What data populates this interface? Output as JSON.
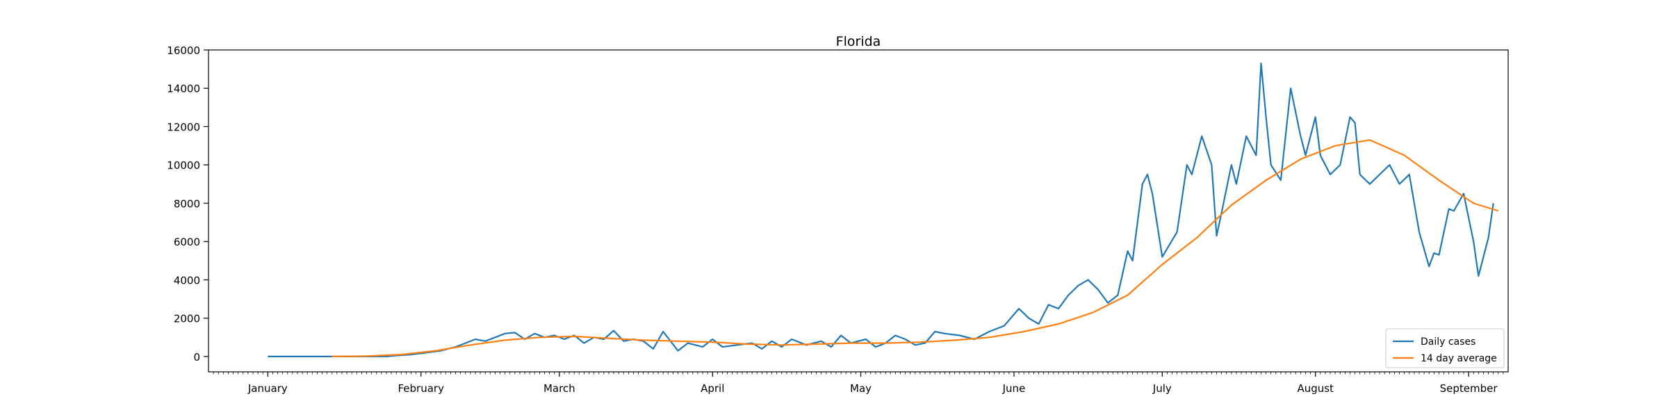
{
  "chart_data": {
    "type": "line",
    "title": "Florida",
    "xlabel": "",
    "ylabel": "",
    "x_axis": {
      "kind": "date",
      "range": [
        "2020-12-20",
        "2021-09-09"
      ],
      "tick_labels": [
        "January",
        "February",
        "March",
        "April",
        "May",
        "June",
        "July",
        "August",
        "September"
      ],
      "tick_dates": [
        "2021-01-01",
        "2021-02-01",
        "2021-03-01",
        "2021-04-01",
        "2021-05-01",
        "2021-06-01",
        "2021-07-01",
        "2021-08-01",
        "2021-09-01"
      ]
    },
    "y_axis": {
      "range": [
        -800,
        16000
      ],
      "ticks": [
        0,
        2000,
        4000,
        6000,
        8000,
        10000,
        12000,
        14000,
        16000
      ],
      "tick_labels": [
        "0",
        "2000",
        "4000",
        "6000",
        "8000",
        "10000",
        "12000",
        "14000",
        "16000"
      ]
    },
    "grid": false,
    "legend": {
      "position": "lower right",
      "entries": [
        "Daily cases",
        "14 day average"
      ]
    },
    "colors": {
      "Daily cases": "#1f77b4",
      "14 day average": "#ff7f0e"
    },
    "series": [
      {
        "name": "Daily cases",
        "points": [
          [
            "2021-01-01",
            0
          ],
          [
            "2021-01-05",
            0
          ],
          [
            "2021-01-09",
            0
          ],
          [
            "2021-01-13",
            0
          ],
          [
            "2021-01-17",
            0
          ],
          [
            "2021-01-21",
            0
          ],
          [
            "2021-01-25",
            0
          ],
          [
            "2021-01-27",
            50
          ],
          [
            "2021-01-30",
            100
          ],
          [
            "2021-02-02",
            200
          ],
          [
            "2021-02-05",
            300
          ],
          [
            "2021-02-08",
            500
          ],
          [
            "2021-02-10",
            700
          ],
          [
            "2021-02-12",
            900
          ],
          [
            "2021-02-14",
            800
          ],
          [
            "2021-02-16",
            1000
          ],
          [
            "2021-02-18",
            1200
          ],
          [
            "2021-02-20",
            1250
          ],
          [
            "2021-02-22",
            900
          ],
          [
            "2021-02-24",
            1200
          ],
          [
            "2021-02-26",
            1000
          ],
          [
            "2021-02-28",
            1100
          ],
          [
            "2021-03-02",
            900
          ],
          [
            "2021-03-04",
            1100
          ],
          [
            "2021-03-06",
            700
          ],
          [
            "2021-03-08",
            1000
          ],
          [
            "2021-03-10",
            900
          ],
          [
            "2021-03-12",
            1350
          ],
          [
            "2021-03-14",
            800
          ],
          [
            "2021-03-16",
            900
          ],
          [
            "2021-03-18",
            800
          ],
          [
            "2021-03-20",
            400
          ],
          [
            "2021-03-22",
            1300
          ],
          [
            "2021-03-25",
            300
          ],
          [
            "2021-03-27",
            700
          ],
          [
            "2021-03-30",
            500
          ],
          [
            "2021-04-01",
            900
          ],
          [
            "2021-04-03",
            500
          ],
          [
            "2021-04-06",
            600
          ],
          [
            "2021-04-09",
            700
          ],
          [
            "2021-04-11",
            400
          ],
          [
            "2021-04-13",
            800
          ],
          [
            "2021-04-15",
            500
          ],
          [
            "2021-04-17",
            900
          ],
          [
            "2021-04-20",
            600
          ],
          [
            "2021-04-23",
            800
          ],
          [
            "2021-04-25",
            500
          ],
          [
            "2021-04-27",
            1100
          ],
          [
            "2021-04-29",
            700
          ],
          [
            "2021-05-02",
            900
          ],
          [
            "2021-05-04",
            500
          ],
          [
            "2021-05-06",
            700
          ],
          [
            "2021-05-08",
            1100
          ],
          [
            "2021-05-10",
            900
          ],
          [
            "2021-05-12",
            600
          ],
          [
            "2021-05-14",
            700
          ],
          [
            "2021-05-16",
            1300
          ],
          [
            "2021-05-18",
            1200
          ],
          [
            "2021-05-21",
            1100
          ],
          [
            "2021-05-24",
            900
          ],
          [
            "2021-05-27",
            1300
          ],
          [
            "2021-05-30",
            1600
          ],
          [
            "2021-06-02",
            2500
          ],
          [
            "2021-06-04",
            2000
          ],
          [
            "2021-06-06",
            1700
          ],
          [
            "2021-06-08",
            2700
          ],
          [
            "2021-06-10",
            2500
          ],
          [
            "2021-06-12",
            3200
          ],
          [
            "2021-06-14",
            3700
          ],
          [
            "2021-06-16",
            4000
          ],
          [
            "2021-06-18",
            3500
          ],
          [
            "2021-06-20",
            2800
          ],
          [
            "2021-06-22",
            3200
          ],
          [
            "2021-06-24",
            5500
          ],
          [
            "2021-06-25",
            5000
          ],
          [
            "2021-06-27",
            9000
          ],
          [
            "2021-06-28",
            9500
          ],
          [
            "2021-06-29",
            8500
          ],
          [
            "2021-07-01",
            5200
          ],
          [
            "2021-07-04",
            6500
          ],
          [
            "2021-07-06",
            10000
          ],
          [
            "2021-07-07",
            9500
          ],
          [
            "2021-07-09",
            11500
          ],
          [
            "2021-07-11",
            10000
          ],
          [
            "2021-07-12",
            6300
          ],
          [
            "2021-07-13",
            7500
          ],
          [
            "2021-07-15",
            10000
          ],
          [
            "2021-07-16",
            9000
          ],
          [
            "2021-07-18",
            11500
          ],
          [
            "2021-07-20",
            10500
          ],
          [
            "2021-07-21",
            15300
          ],
          [
            "2021-07-22",
            12500
          ],
          [
            "2021-07-23",
            10000
          ],
          [
            "2021-07-25",
            9200
          ],
          [
            "2021-07-27",
            14000
          ],
          [
            "2021-07-29",
            11500
          ],
          [
            "2021-07-30",
            10500
          ],
          [
            "2021-08-01",
            12500
          ],
          [
            "2021-08-02",
            10500
          ],
          [
            "2021-08-04",
            9500
          ],
          [
            "2021-08-06",
            10000
          ],
          [
            "2021-08-08",
            12500
          ],
          [
            "2021-08-09",
            12200
          ],
          [
            "2021-08-10",
            9500
          ],
          [
            "2021-08-12",
            9000
          ],
          [
            "2021-08-14",
            9500
          ],
          [
            "2021-08-16",
            10000
          ],
          [
            "2021-08-18",
            9000
          ],
          [
            "2021-08-20",
            9500
          ],
          [
            "2021-08-22",
            6500
          ],
          [
            "2021-08-24",
            4700
          ],
          [
            "2021-08-25",
            5400
          ],
          [
            "2021-08-26",
            5300
          ],
          [
            "2021-08-28",
            7700
          ],
          [
            "2021-08-29",
            7600
          ],
          [
            "2021-08-31",
            8500
          ],
          [
            "2021-09-02",
            6000
          ],
          [
            "2021-09-03",
            4200
          ],
          [
            "2021-09-05",
            6200
          ],
          [
            "2021-09-06",
            8000
          ]
        ]
      },
      {
        "name": "14 day average",
        "points": [
          [
            "2021-01-14",
            0
          ],
          [
            "2021-01-21",
            20
          ],
          [
            "2021-01-28",
            100
          ],
          [
            "2021-02-04",
            300
          ],
          [
            "2021-02-11",
            600
          ],
          [
            "2021-02-18",
            850
          ],
          [
            "2021-02-25",
            1000
          ],
          [
            "2021-03-04",
            1050
          ],
          [
            "2021-03-11",
            950
          ],
          [
            "2021-03-18",
            850
          ],
          [
            "2021-03-25",
            800
          ],
          [
            "2021-04-01",
            750
          ],
          [
            "2021-04-08",
            650
          ],
          [
            "2021-04-15",
            600
          ],
          [
            "2021-04-22",
            650
          ],
          [
            "2021-04-29",
            700
          ],
          [
            "2021-05-06",
            700
          ],
          [
            "2021-05-13",
            750
          ],
          [
            "2021-05-20",
            850
          ],
          [
            "2021-05-27",
            1000
          ],
          [
            "2021-06-03",
            1300
          ],
          [
            "2021-06-10",
            1700
          ],
          [
            "2021-06-17",
            2300
          ],
          [
            "2021-06-24",
            3200
          ],
          [
            "2021-07-01",
            4800
          ],
          [
            "2021-07-08",
            6200
          ],
          [
            "2021-07-15",
            7900
          ],
          [
            "2021-07-22",
            9200
          ],
          [
            "2021-07-29",
            10300
          ],
          [
            "2021-08-05",
            11000
          ],
          [
            "2021-08-12",
            11300
          ],
          [
            "2021-08-19",
            10500
          ],
          [
            "2021-08-26",
            9200
          ],
          [
            "2021-09-02",
            8000
          ],
          [
            "2021-09-07",
            7600
          ]
        ]
      }
    ]
  }
}
